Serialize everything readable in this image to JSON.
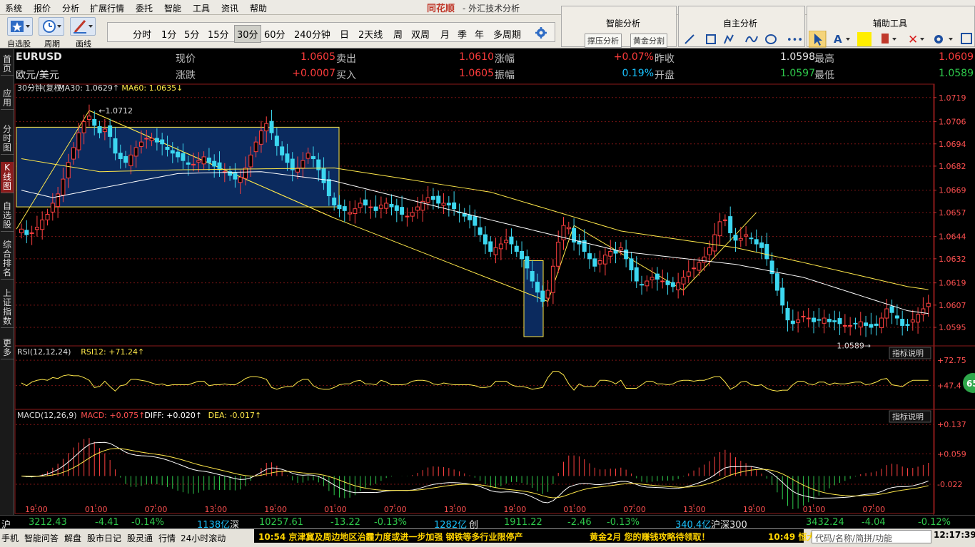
{
  "menu": {
    "items": [
      "系统",
      "报价",
      "分析",
      "扩展行情",
      "委托",
      "智能",
      "工具",
      "资讯",
      "帮助"
    ],
    "brand": "同花顺",
    "app_title": "- 外汇技术分析"
  },
  "toolbar": {
    "left_labels": [
      "自选股",
      "周期",
      "画线"
    ],
    "periods": [
      "分时",
      "1分",
      "5分",
      "15分",
      "30分",
      "60分",
      "240分钟",
      "日",
      "2天线",
      "周",
      "双周",
      "月",
      "季",
      "年",
      "多周期"
    ],
    "selected_period": "30分",
    "smart_title": "智能分析",
    "smart_buttons": [
      "撑压分析",
      "黄金分割"
    ],
    "self_title": "自主分析",
    "aux_title": "辅助工具",
    "aux_text_label": "A"
  },
  "nav": {
    "items": [
      "首页",
      "应用",
      "分时图",
      "K线图",
      "自选股",
      "综合排名",
      "上证指数",
      "更多"
    ],
    "active": "K线图"
  },
  "quote": {
    "symbol": "EURUSD",
    "name": "欧元/美元",
    "fields": [
      {
        "label": "现价",
        "value": "1.0605"
      },
      {
        "label": "卖出",
        "value": "1.0610"
      },
      {
        "label": "涨幅",
        "value": "+0.07%"
      },
      {
        "label": "昨收",
        "value": "1.0598"
      },
      {
        "label": "最高",
        "value": "1.0609"
      },
      {
        "label": "涨跌",
        "value": "+0.0007"
      },
      {
        "label": "买入",
        "value": "1.0605"
      },
      {
        "label": "振幅",
        "value": "0.19%"
      },
      {
        "label": "开盘",
        "value": "1.0597"
      },
      {
        "label": "最低",
        "value": "1.0589"
      }
    ]
  },
  "chart_data": [
    {
      "type": "candlestick",
      "title": "30分钟(复权)",
      "legend": [
        {
          "name": "MA30",
          "value": "1.0629"
        },
        {
          "name": "MA60",
          "value": "1.0635"
        }
      ],
      "y_ticks": [
        "1.0719",
        "1.0706",
        "1.0694",
        "1.0682",
        "1.0669",
        "1.0657",
        "1.0644",
        "1.0632",
        "1.0619",
        "1.0607",
        "1.0595"
      ],
      "ylim": [
        1.0585,
        1.0722
      ],
      "x_ticks": [
        "19:00",
        "01:00",
        "07:00",
        "13:00",
        "19:00",
        "01:00",
        "07:00",
        "13:00",
        "19:00",
        "01:00",
        "07:00",
        "13:00",
        "19:00",
        "01:00",
        "07:00"
      ],
      "annotations": [
        {
          "text": "1.0712",
          "value": 1.0712
        },
        {
          "text": "1.0589",
          "value": 1.0589
        }
      ],
      "colors": {
        "up": "#ff4040",
        "down": "#3cd7f0",
        "ma30": "#ffffff",
        "ma60": "#ffe84a"
      },
      "close": [
        1.0648,
        1.0645,
        1.0646,
        1.0649,
        1.0653,
        1.0656,
        1.0662,
        1.0667,
        1.0675,
        1.0684,
        1.0692,
        1.07,
        1.0706,
        1.0709,
        1.0704,
        1.07,
        1.0702,
        1.0698,
        1.0689,
        1.0686,
        1.0684,
        1.0688,
        1.0692,
        1.0695,
        1.0697,
        1.0697,
        1.0695,
        1.0694,
        1.0691,
        1.0689,
        1.0687,
        1.0685,
        1.0683,
        1.0683,
        1.0685,
        1.0687,
        1.0684,
        1.0682,
        1.068,
        1.0679,
        1.0677,
        1.0675,
        1.0676,
        1.0681,
        1.0688,
        1.0695,
        1.0701,
        1.0705,
        1.07,
        1.0693,
        1.0688,
        1.0684,
        1.068,
        1.0681,
        1.0685,
        1.0689,
        1.0686,
        1.068,
        1.0673,
        1.0666,
        1.0661,
        1.0659,
        1.0658,
        1.0657,
        1.0659,
        1.0662,
        1.0661,
        1.066,
        1.0658,
        1.0661,
        1.0662,
        1.066,
        1.0658,
        1.0656,
        1.0655,
        1.0657,
        1.066,
        1.0663,
        1.0665,
        1.0664,
        1.0662,
        1.0662,
        1.0661,
        1.0659,
        1.0657,
        1.0655,
        1.0653,
        1.065,
        1.0645,
        1.064,
        1.0636,
        1.0638,
        1.064,
        1.0642,
        1.064,
        1.0636,
        1.0632,
        1.0627,
        1.062,
        1.0614,
        1.0609,
        1.0615,
        1.0628,
        1.0641,
        1.065,
        1.0649,
        1.0641,
        1.064,
        1.0636,
        1.0632,
        1.0628,
        1.0631,
        1.0634,
        1.0636,
        1.0635,
        1.0638,
        1.0632,
        1.0626,
        1.062,
        1.0618,
        1.062,
        1.0622,
        1.0621,
        1.062,
        1.0618,
        1.0617,
        1.0619,
        1.0622,
        1.0625,
        1.0627,
        1.063,
        1.0633,
        1.0638,
        1.0645,
        1.0652,
        1.0653,
        1.0646,
        1.0642,
        1.0643,
        1.0645,
        1.0643,
        1.064,
        1.0638,
        1.0632,
        1.0624,
        1.0615,
        1.0607,
        1.0599,
        1.0597,
        1.0599,
        1.0601,
        1.06,
        1.0598,
        1.0599,
        1.06,
        1.0598,
        1.0598,
        1.0597,
        1.0596,
        1.0596,
        1.0597,
        1.0598,
        1.0596,
        1.0595,
        1.0596,
        1.06,
        1.0605,
        1.0603,
        1.06,
        1.0596,
        1.0596,
        1.0599,
        1.0602,
        1.0605,
        1.0608
      ],
      "ma30_anchors": [
        [
          0,
          1.0669
        ],
        [
          6,
          1.0665
        ],
        [
          15,
          1.067
        ],
        [
          30,
          1.0678
        ],
        [
          46,
          1.0679
        ],
        [
          60,
          1.0674
        ],
        [
          90,
          1.0653
        ],
        [
          115,
          1.0636
        ],
        [
          137,
          1.0629
        ],
        [
          150,
          1.0622
        ],
        [
          170,
          1.0604
        ]
      ],
      "ma60_anchors": [
        [
          0,
          1.0686
        ],
        [
          15,
          1.0679
        ],
        [
          30,
          1.068
        ],
        [
          60,
          1.0681
        ],
        [
          90,
          1.0668
        ],
        [
          115,
          1.0647
        ],
        [
          137,
          1.0638
        ],
        [
          150,
          1.063
        ],
        [
          170,
          1.0617
        ]
      ]
    },
    {
      "type": "line",
      "title": "RSI(12,12,24)",
      "legend": [
        {
          "name": "RSI12",
          "value": "+71.24"
        }
      ],
      "y_ticks": [
        "+72.75",
        "+47.4"
      ],
      "ylim": [
        25,
        75
      ],
      "button": "指标说明",
      "circle": "65"
    },
    {
      "type": "bar-line",
      "title": "MACD(12,26,9)",
      "legend": [
        {
          "name": "MACD",
          "value": "+0.075"
        },
        {
          "name": "DIFF",
          "value": "+0.020"
        },
        {
          "name": "DEA",
          "value": "-0.017"
        }
      ],
      "y_ticks": [
        "+0.137",
        "+0.059",
        "-0.022"
      ],
      "ylim": [
        -0.075,
        0.145
      ],
      "button": "指标说明"
    }
  ],
  "status": {
    "sh_label": "沪",
    "sh_value": "3212.43",
    "sh_change": "-4.41",
    "sh_pct": "-0.14%",
    "sh_amount": "1138亿",
    "sz_label": "深",
    "sz_value": "10257.61",
    "sz_change": "-13.22",
    "sz_pct": "-0.13%",
    "sz_amount": "1282亿",
    "cy_label": "创",
    "cy_value": "1911.22",
    "cy_change": "-2.46",
    "cy_pct": "-0.13%",
    "cy_amount": "340.4亿",
    "hs_label": "沪深300",
    "hs_value": "3432.24",
    "hs_change": "-4.04",
    "hs_pct": "-0.12%"
  },
  "bottom": {
    "tabs": [
      "手机",
      "智能问答",
      "解盘",
      "股市日记",
      "股灵通",
      "行情",
      "24小时滚动"
    ],
    "news1": "10:54 京津冀及周边地区治霾力度或进一步加强 钢铁等多行业限停产",
    "news2": "黄金2月 您的赚钱攻略待领取！",
    "news3": "10:49 恒大",
    "code_placeholder": "代码/名称/简拼/功能",
    "clock": "12:17:39"
  }
}
